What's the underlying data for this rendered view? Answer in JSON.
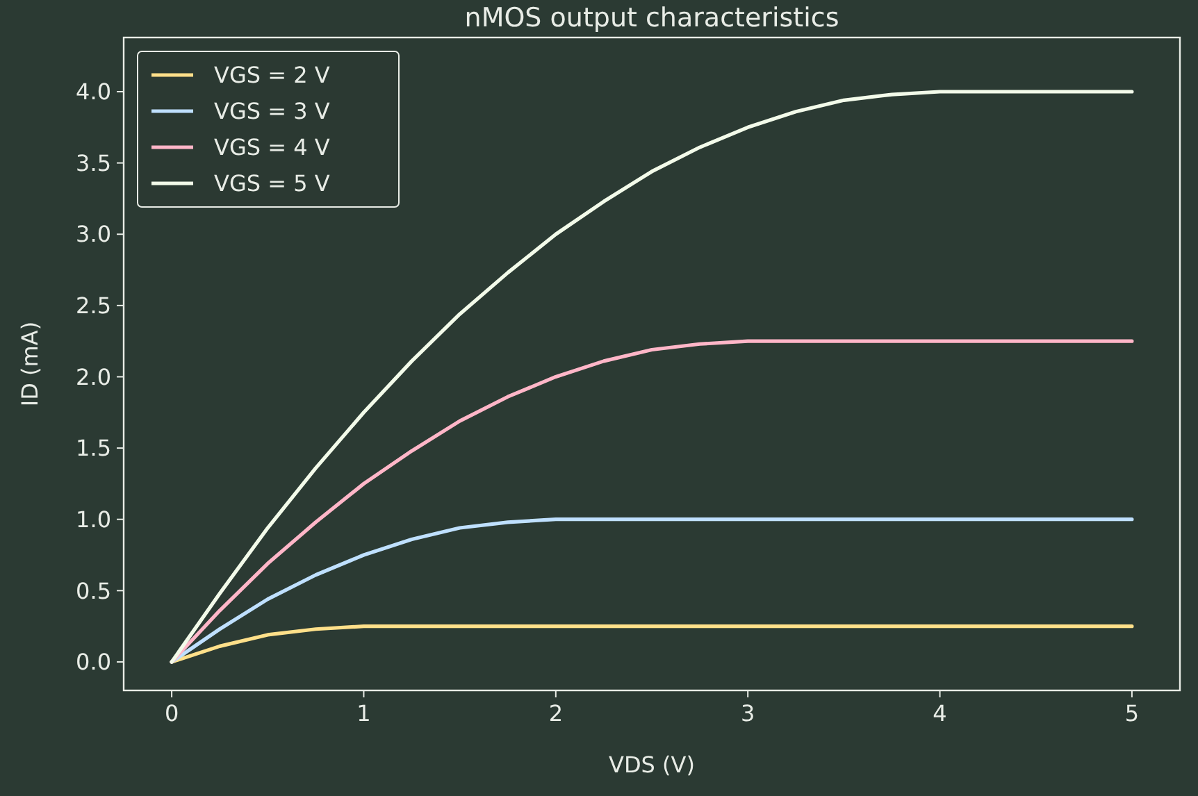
{
  "chart_data": {
    "type": "line",
    "title": "nMOS output characteristics",
    "xlabel": "VDS (V)",
    "ylabel": "ID (mA)",
    "x": [
      0,
      0.25,
      0.5,
      0.75,
      1,
      1.25,
      1.5,
      1.75,
      2,
      2.25,
      2.5,
      2.75,
      3,
      3.25,
      3.5,
      3.75,
      4,
      4.25,
      4.5,
      4.75,
      5
    ],
    "series": [
      {
        "name": "VGS = 2 V",
        "color": "#ffe08a",
        "values": [
          0,
          0.11,
          0.19,
          0.23,
          0.25,
          0.25,
          0.25,
          0.25,
          0.25,
          0.25,
          0.25,
          0.25,
          0.25,
          0.25,
          0.25,
          0.25,
          0.25,
          0.25,
          0.25,
          0.25,
          0.25
        ]
      },
      {
        "name": "VGS = 3 V",
        "color": "#bfe0ff",
        "values": [
          0,
          0.23,
          0.44,
          0.61,
          0.75,
          0.86,
          0.94,
          0.98,
          1.0,
          1.0,
          1.0,
          1.0,
          1.0,
          1.0,
          1.0,
          1.0,
          1.0,
          1.0,
          1.0,
          1.0,
          1.0
        ]
      },
      {
        "name": "VGS = 4 V",
        "color": "#ffb6c8",
        "values": [
          0,
          0.36,
          0.69,
          0.98,
          1.25,
          1.48,
          1.69,
          1.86,
          2.0,
          2.11,
          2.19,
          2.23,
          2.25,
          2.25,
          2.25,
          2.25,
          2.25,
          2.25,
          2.25,
          2.25,
          2.25
        ]
      },
      {
        "name": "VGS = 5 V",
        "color": "#f3fbea",
        "values": [
          0,
          0.48,
          0.94,
          1.36,
          1.75,
          2.11,
          2.44,
          2.73,
          3.0,
          3.23,
          3.44,
          3.61,
          3.75,
          3.86,
          3.94,
          3.98,
          4.0,
          4.0,
          4.0,
          4.0,
          4.0
        ]
      }
    ],
    "xlim": [
      -0.25,
      5.25
    ],
    "xticks": [
      0,
      1,
      2,
      3,
      4,
      5
    ],
    "ylim": [
      -0.2,
      4.38
    ],
    "yticks": [
      {
        "value": 0,
        "label": "0.0"
      },
      {
        "value": 0.5,
        "label": "0.5"
      },
      {
        "value": 1,
        "label": "1.0"
      },
      {
        "value": 1.5,
        "label": "1.5"
      },
      {
        "value": 2,
        "label": "2.0"
      },
      {
        "value": 2.5,
        "label": "2.5"
      },
      {
        "value": 3,
        "label": "3.0"
      },
      {
        "value": 3.5,
        "label": "3.5"
      },
      {
        "value": 4,
        "label": "4.0"
      }
    ],
    "legend": "top left",
    "marker": "none",
    "line_style": "solid",
    "grid": false
  }
}
